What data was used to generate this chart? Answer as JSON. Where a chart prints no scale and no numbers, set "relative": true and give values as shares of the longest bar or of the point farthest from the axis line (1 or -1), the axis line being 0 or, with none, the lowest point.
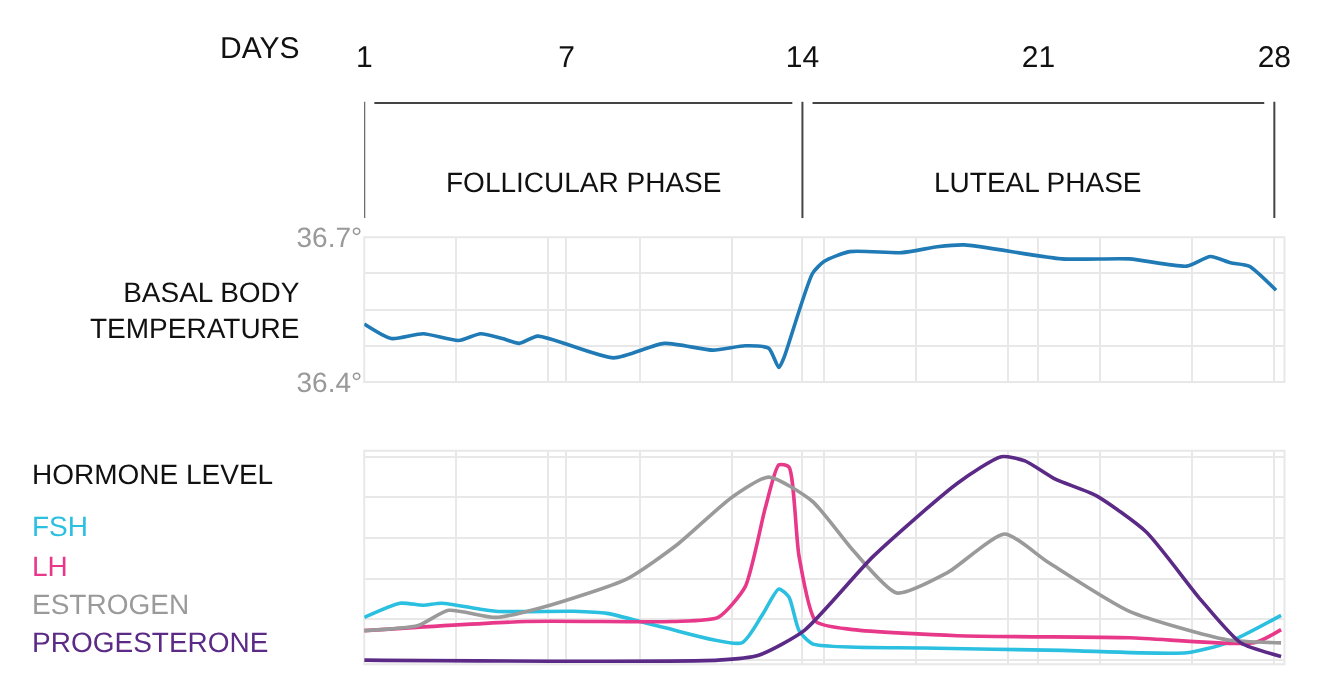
{
  "chart_data": [
    {
      "type": "line",
      "xlabel": "DAYS",
      "ylabel": "BASAL BODY TEMPERATURE",
      "xlim": [
        1,
        28.3
      ],
      "ylim": [
        36.4,
        36.7
      ],
      "xticks": [
        1,
        {
          "value": 3.73,
          "label": null
        },
        {
          "value": 6.46,
          "label": null
        },
        7,
        {
          "value": 9.19,
          "label": null
        },
        {
          "value": 11.92,
          "label": null
        },
        14,
        {
          "value": 14.65,
          "label": null
        },
        {
          "value": 17.38,
          "label": null
        },
        {
          "value": 20.11,
          "label": null
        },
        21,
        {
          "value": 22.84,
          "label": null
        },
        {
          "value": 25.57,
          "label": null
        },
        28
      ],
      "yticks": [
        {
          "value": 36.4,
          "label": "36.4°"
        },
        {
          "value": 36.475,
          "label": null
        },
        {
          "value": 36.55,
          "label": null
        },
        {
          "value": 36.625,
          "label": null
        },
        {
          "value": 36.7,
          "label": "36.7°"
        }
      ],
      "grid": true,
      "legend": false,
      "annotations": [
        "FOLLICULAR PHASE",
        "LUTEAL PHASE"
      ],
      "series": [
        {
          "color": "#1f7ab5",
          "x": [
            1,
            1.8,
            2.75,
            3.8,
            4.45,
            5.1,
            5.6,
            6.15,
            8.4,
            9.9,
            11.35,
            12.3,
            13.0,
            13.3,
            13.45,
            14.3,
            14.65,
            15.4,
            16.95,
            18.0,
            18.8,
            21.7,
            23.7,
            25.4,
            26.1,
            26.7,
            27.25,
            28.05
          ],
          "values": [
            36.52,
            36.49,
            36.5,
            36.486,
            36.5,
            36.49,
            36.48,
            36.495,
            36.45,
            36.48,
            36.466,
            36.475,
            36.47,
            36.43,
            36.45,
            36.625,
            36.65,
            36.67,
            36.668,
            36.68,
            36.684,
            36.655,
            36.655,
            36.64,
            36.66,
            36.647,
            36.64,
            36.59
          ]
        }
      ]
    },
    {
      "type": "line",
      "ylabel": "HORMONE LEVEL",
      "relative": true,
      "xlim": [
        1,
        28.3
      ],
      "tick_labels": false,
      "grid": true,
      "legend": "left",
      "xticks": [
        1,
        {
          "value": 3.73,
          "label": null
        },
        {
          "value": 6.46,
          "label": null
        },
        7,
        {
          "value": 9.19,
          "label": null
        },
        {
          "value": 11.92,
          "label": null
        },
        14,
        {
          "value": 14.65,
          "label": null
        },
        {
          "value": 17.38,
          "label": null
        },
        {
          "value": 20.11,
          "label": null
        },
        21,
        {
          "value": 22.84,
          "label": null
        },
        {
          "value": 25.57,
          "label": null
        },
        28
      ],
      "series": [
        {
          "name": "FSH",
          "color": "#2bbfe0",
          "x": [
            1,
            2.06,
            2.75,
            3.3,
            4.9,
            7.2,
            8.2,
            9.9,
            12.2,
            12.8,
            13.3,
            13.6,
            13.9,
            14.3,
            17.6,
            21.7,
            25.4,
            26.6,
            28.2
          ],
          "values": [
            0.21,
            0.28,
            0.27,
            0.28,
            0.24,
            0.24,
            0.23,
            0.16,
            0.085,
            0.22,
            0.35,
            0.31,
            0.145,
            0.08,
            0.06,
            0.048,
            0.036,
            0.085,
            0.22
          ]
        },
        {
          "name": "LH",
          "color": "#e8388a",
          "x": [
            1,
            5.8,
            10.15,
            11.5,
            12.3,
            12.9,
            13.3,
            13.6,
            13.9,
            14.4,
            15.5,
            18.6,
            23.7,
            27.4,
            28.2
          ],
          "values": [
            0.145,
            0.19,
            0.19,
            0.21,
            0.36,
            0.75,
            0.96,
            0.95,
            0.51,
            0.19,
            0.15,
            0.12,
            0.11,
            0.085,
            0.15
          ]
        },
        {
          "name": "ESTROGEN",
          "color": "#9a9a9a",
          "x": [
            1,
            2.6,
            3.5,
            4.9,
            6.3,
            8.8,
            10.3,
            11.9,
            13.0,
            14.3,
            15.5,
            16.8,
            18.3,
            20.0,
            21.3,
            23.7,
            26.6,
            28.2
          ],
          "values": [
            0.145,
            0.17,
            0.245,
            0.21,
            0.26,
            0.4,
            0.57,
            0.8,
            0.9,
            0.78,
            0.54,
            0.33,
            0.43,
            0.62,
            0.48,
            0.24,
            0.1,
            0.085
          ]
        },
        {
          "name": "PROGESTERONE",
          "color": "#5b2a86",
          "x": [
            1,
            11.5,
            12.7,
            14.05,
            16.1,
            18.6,
            19.9,
            20.6,
            21.5,
            22.7,
            24.2,
            25.8,
            27.0,
            28.2
          ],
          "values": [
            0,
            0,
            0.024,
            0.145,
            0.51,
            0.87,
            1.0,
            0.98,
            0.89,
            0.81,
            0.63,
            0.3,
            0.085,
            0.018
          ]
        }
      ]
    }
  ]
}
